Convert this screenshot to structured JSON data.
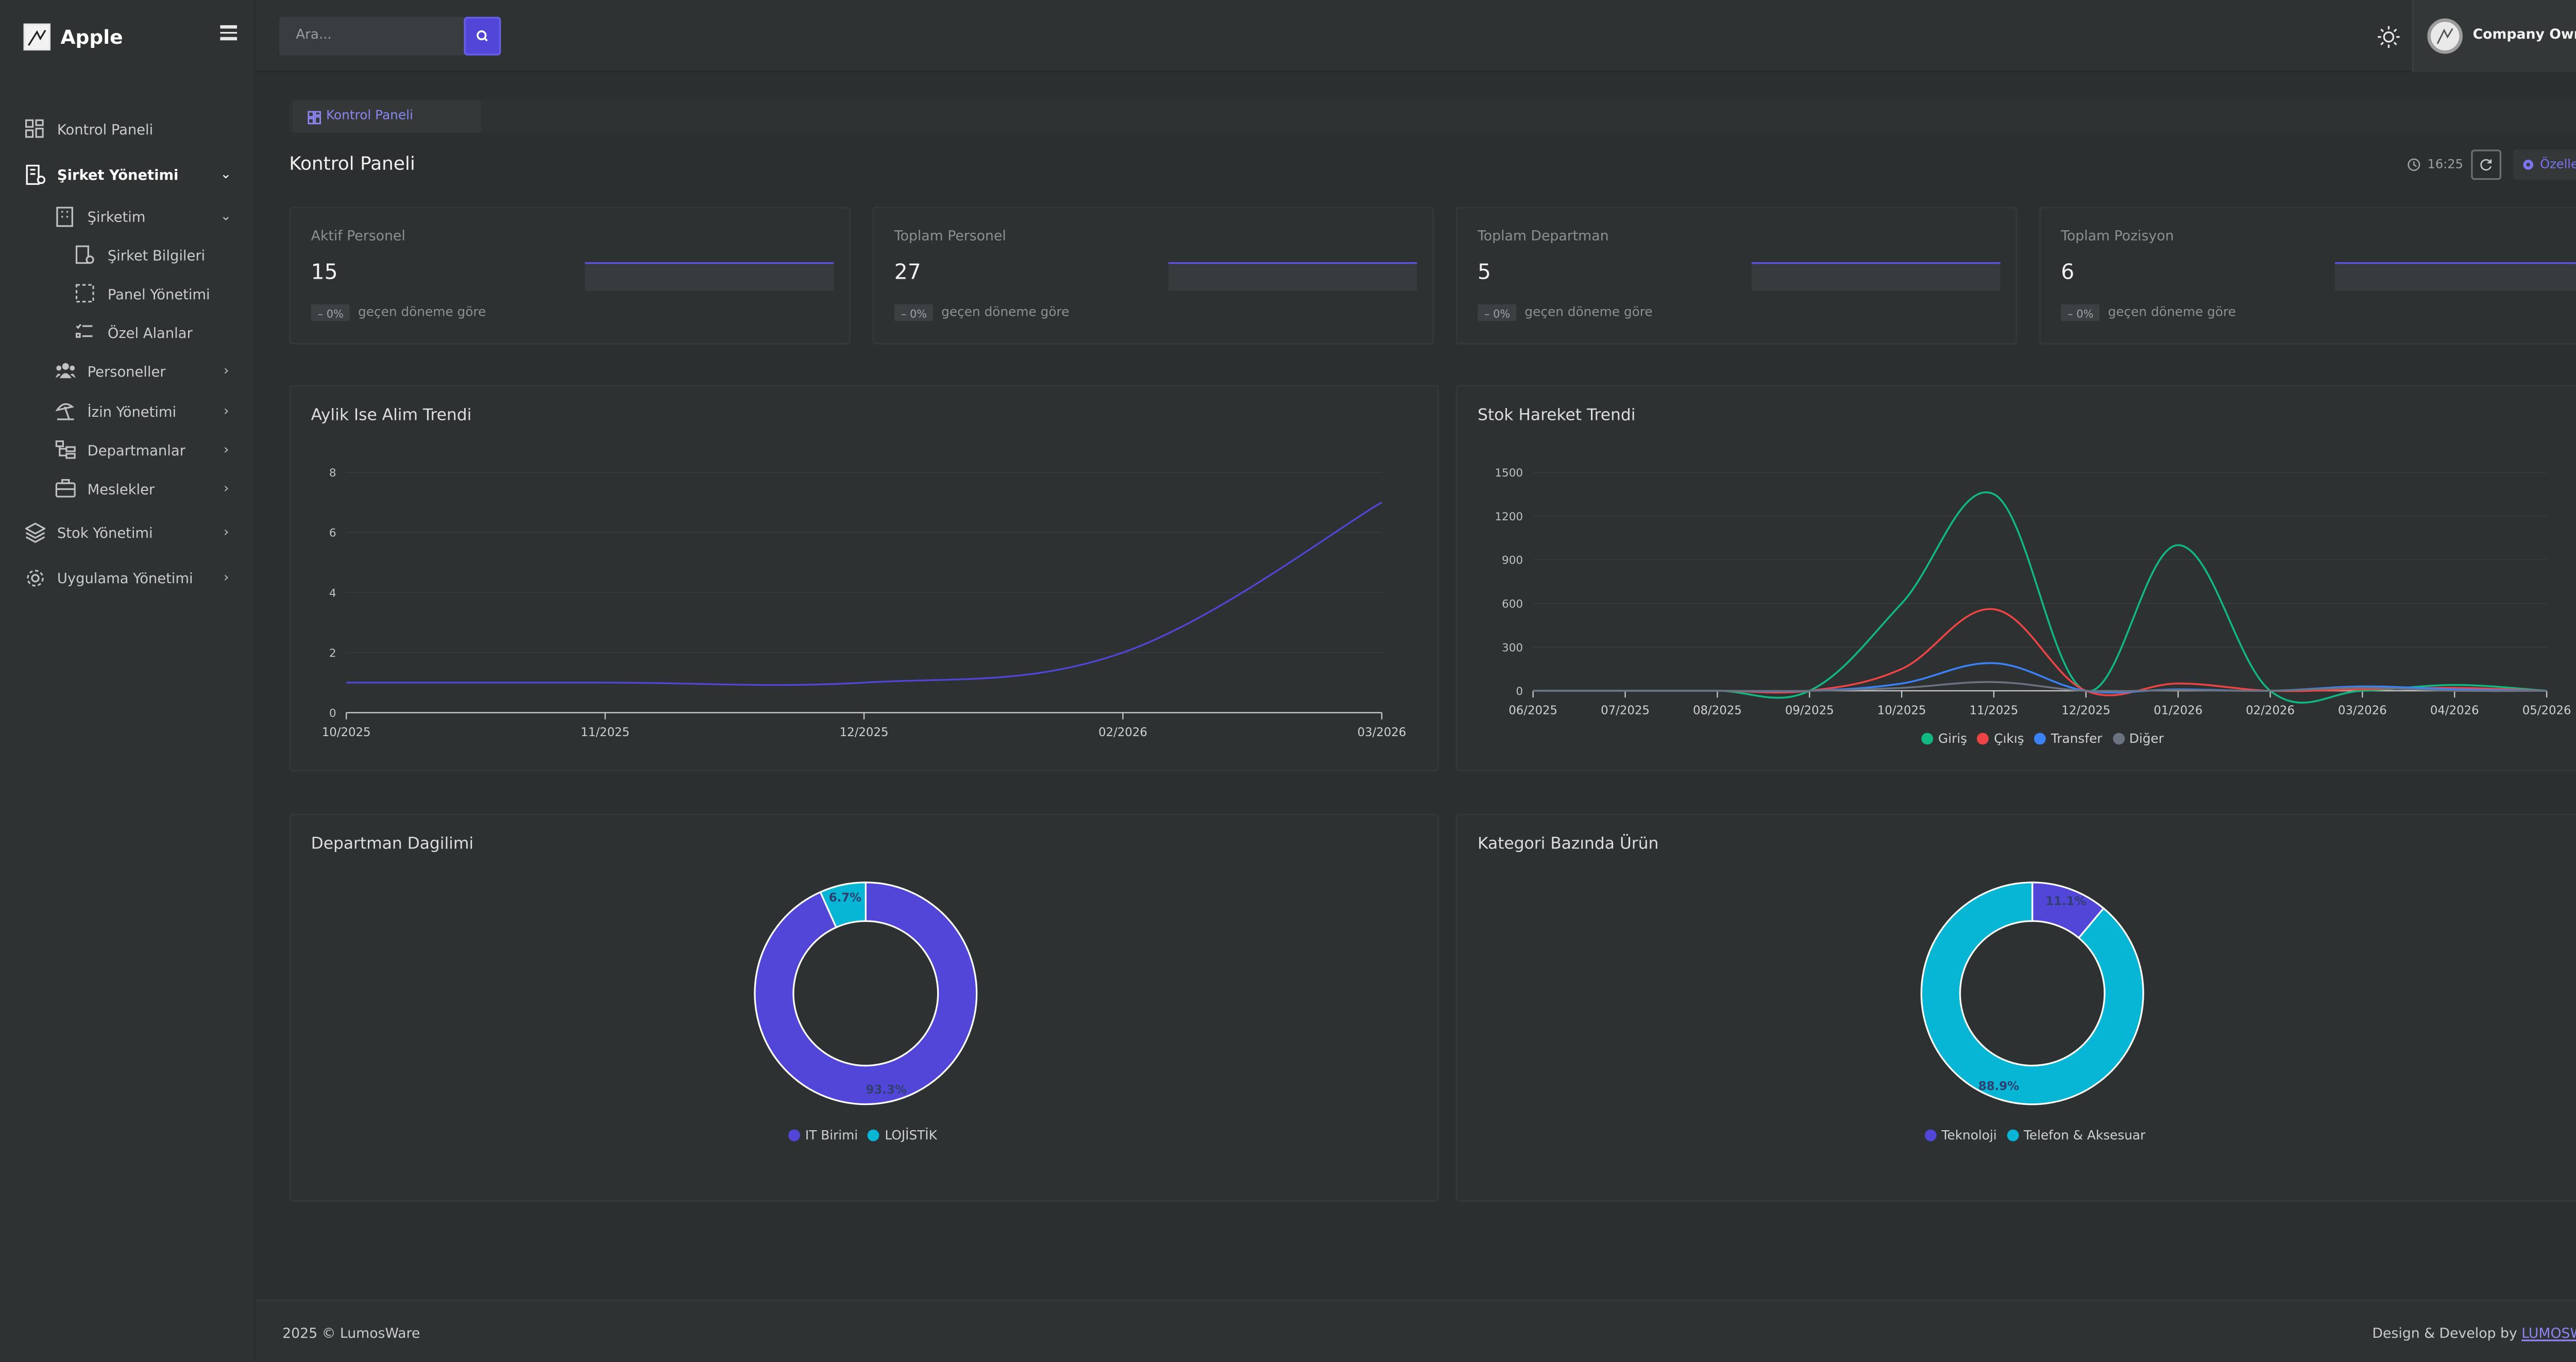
{
  "app": {
    "name": "Apple"
  },
  "sidebar": {
    "items": [
      {
        "label": "Kontrol Paneli"
      },
      {
        "label": "Şirket Yönetimi"
      },
      {
        "label": "Şirketim"
      },
      {
        "label": "Şirket Bilgileri"
      },
      {
        "label": "Panel Yönetimi"
      },
      {
        "label": "Özel Alanlar"
      },
      {
        "label": "Personeller"
      },
      {
        "label": "İzin Yönetimi"
      },
      {
        "label": "Departmanlar"
      },
      {
        "label": "Meslekler"
      },
      {
        "label": "Stok Yönetimi"
      },
      {
        "label": "Uygulama Yönetimi"
      }
    ]
  },
  "topbar": {
    "search_placeholder": "Ara...",
    "user_name": "Company Owner"
  },
  "breadcrumb": {
    "label": "Kontrol Paneli"
  },
  "page": {
    "title": "Kontrol Paneli",
    "time": "16:25",
    "customize_label": "Özelleştir"
  },
  "stats": [
    {
      "label": "Aktif Personel",
      "value": "15",
      "change": "0%",
      "sub": "geçen döneme göre"
    },
    {
      "label": "Toplam Personel",
      "value": "27",
      "change": "0%",
      "sub": "geçen döneme göre"
    },
    {
      "label": "Toplam Departman",
      "value": "5",
      "change": "0%",
      "sub": "geçen döneme göre"
    },
    {
      "label": "Toplam Pozisyon",
      "value": "6",
      "change": "0%",
      "sub": "geçen döneme göre"
    }
  ],
  "colors": {
    "accent": "#5146d8",
    "green": "#10b981",
    "red": "#ef4444",
    "blue": "#3b82f6",
    "gray": "#6b7280",
    "cyan": "#06b6d4"
  },
  "chart_data": [
    {
      "type": "line",
      "title": "Aylik Ise Alim Trendi",
      "x": [
        "10/2025",
        "11/2025",
        "12/2025",
        "02/2026",
        "03/2026"
      ],
      "series": [
        {
          "values": [
            1,
            1,
            1,
            2,
            7
          ]
        }
      ],
      "ylim": [
        0,
        8
      ],
      "yticks": [
        0,
        2,
        4,
        6,
        8
      ],
      "grid": true
    },
    {
      "type": "line",
      "title": "Stok Hareket Trendi",
      "x": [
        "06/2025",
        "07/2025",
        "08/2025",
        "09/2025",
        "10/2025",
        "11/2025",
        "12/2025",
        "01/2026",
        "02/2026",
        "03/2026",
        "04/2026",
        "05/2026"
      ],
      "series": [
        {
          "name": "Giriş",
          "values": [
            0,
            0,
            0,
            0,
            600,
            1350,
            0,
            1000,
            0,
            0,
            40,
            0
          ]
        },
        {
          "name": "Çıkış",
          "values": [
            0,
            0,
            0,
            0,
            150,
            560,
            0,
            50,
            0,
            10,
            20,
            0
          ]
        },
        {
          "name": "Transfer",
          "values": [
            0,
            0,
            0,
            0,
            50,
            190,
            0,
            10,
            0,
            30,
            10,
            0
          ]
        },
        {
          "name": "Diğer",
          "values": [
            0,
            0,
            0,
            0,
            20,
            60,
            0,
            5,
            0,
            20,
            0,
            0
          ]
        }
      ],
      "ylim": [
        0,
        1500
      ],
      "yticks": [
        0,
        300,
        600,
        900,
        1200,
        1500
      ],
      "legend": "bottom",
      "grid": true
    },
    {
      "type": "pie",
      "title": "Departman Dagilimi",
      "categories": [
        "IT Birimi",
        "LOJİSTİK"
      ],
      "values": [
        93.3,
        6.7
      ],
      "labels": [
        "93.3%",
        "6.7%"
      ],
      "legend": "bottom"
    },
    {
      "type": "pie",
      "title": "Kategori Bazında Ürün",
      "categories": [
        "Teknoloji",
        "Telefon & Aksesuar"
      ],
      "values": [
        11.1,
        88.9
      ],
      "labels": [
        "11.1%",
        "88.9%"
      ],
      "legend": "bottom"
    }
  ],
  "footer": {
    "left": "2025 © LumosWare",
    "right_prefix": "Design & Develop by",
    "right_link": "LUMOSWARE"
  }
}
